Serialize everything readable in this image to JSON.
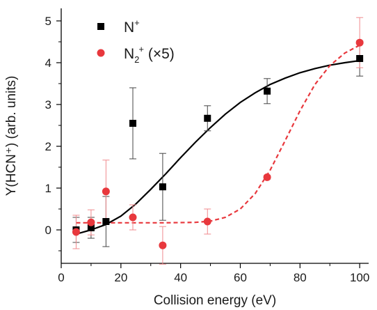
{
  "chart_data": {
    "type": "scatter",
    "xlabel": "Collision energy (eV)",
    "ylabel": "Y(HCN⁺) (arb. units)",
    "xlim": [
      0,
      103
    ],
    "ylim": [
      -0.8,
      5.3
    ],
    "xticks": [
      0,
      20,
      40,
      60,
      80,
      100
    ],
    "yticks": [
      0,
      1,
      2,
      3,
      4,
      5
    ],
    "grid": false,
    "legend_position": "top-left",
    "series": [
      {
        "name": "N⁺",
        "name_parts": {
          "base": "N",
          "sup": "+"
        },
        "marker": "square",
        "color": "#000000",
        "points": [
          {
            "x": 5,
            "y": 0.0,
            "err": 0.3
          },
          {
            "x": 10,
            "y": 0.05,
            "err": 0.25
          },
          {
            "x": 15,
            "y": 0.2,
            "err": 0.6
          },
          {
            "x": 24,
            "y": 2.55,
            "err": 0.85
          },
          {
            "x": 34,
            "y": 1.03,
            "err": 0.8
          },
          {
            "x": 49,
            "y": 2.67,
            "err": 0.3
          },
          {
            "x": 69,
            "y": 3.32,
            "err": 0.3
          },
          {
            "x": 100,
            "y": 4.1,
            "err": 0.42
          }
        ],
        "fit": {
          "style": "solid",
          "curve": [
            [
              5,
              -0.1
            ],
            [
              10,
              0.0
            ],
            [
              15,
              0.13
            ],
            [
              20,
              0.33
            ],
            [
              25,
              0.62
            ],
            [
              30,
              0.97
            ],
            [
              35,
              1.34
            ],
            [
              40,
              1.73
            ],
            [
              45,
              2.1
            ],
            [
              50,
              2.45
            ],
            [
              55,
              2.77
            ],
            [
              60,
              3.05
            ],
            [
              65,
              3.28
            ],
            [
              70,
              3.48
            ],
            [
              75,
              3.63
            ],
            [
              80,
              3.76
            ],
            [
              85,
              3.86
            ],
            [
              90,
              3.94
            ],
            [
              95,
              4.0
            ],
            [
              100,
              4.05
            ]
          ]
        }
      },
      {
        "name": "N₂⁺ (×5)",
        "name_parts": {
          "base": "N",
          "sub": "2",
          "sup": "+",
          "suffix": " (×5)"
        },
        "marker": "circle",
        "color": "#e8383d",
        "points": [
          {
            "x": 5,
            "y": -0.05,
            "err": 0.4
          },
          {
            "x": 10,
            "y": 0.18,
            "err": 0.3
          },
          {
            "x": 15,
            "y": 0.92,
            "err": 0.75
          },
          {
            "x": 24,
            "y": 0.3,
            "err": 0.3
          },
          {
            "x": 34,
            "y": -0.37,
            "err": 0.45
          },
          {
            "x": 49,
            "y": 0.2,
            "err": 0.3
          },
          {
            "x": 69,
            "y": 1.26,
            "err": 0.05
          },
          {
            "x": 100,
            "y": 4.48,
            "err": 0.6
          }
        ],
        "fit": {
          "style": "dashed",
          "curve": [
            [
              5,
              0.17
            ],
            [
              20,
              0.17
            ],
            [
              35,
              0.17
            ],
            [
              45,
              0.18
            ],
            [
              50,
              0.21
            ],
            [
              55,
              0.3
            ],
            [
              60,
              0.5
            ],
            [
              65,
              0.87
            ],
            [
              70,
              1.43
            ],
            [
              75,
              2.13
            ],
            [
              80,
              2.85
            ],
            [
              85,
              3.48
            ],
            [
              90,
              3.93
            ],
            [
              95,
              4.23
            ],
            [
              100,
              4.42
            ]
          ]
        }
      }
    ]
  }
}
